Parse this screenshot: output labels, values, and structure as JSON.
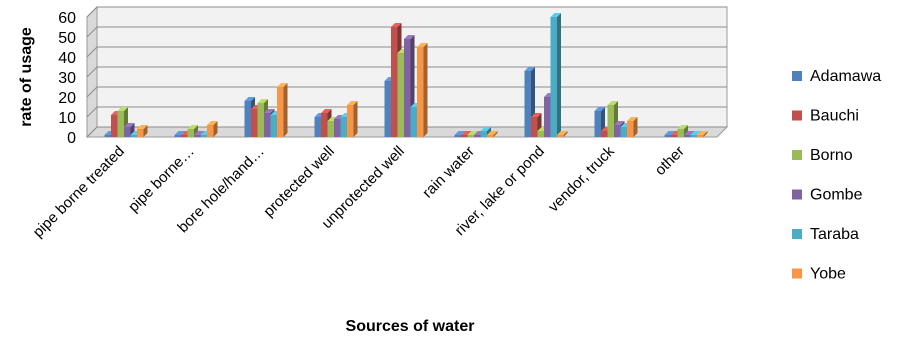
{
  "chart_data": {
    "type": "bar",
    "xlabel": "Sources of water",
    "ylabel": "rate of usage",
    "ylim": [
      0,
      60
    ],
    "yticks": [
      "0",
      "10",
      "20",
      "30",
      "40",
      "50",
      "60"
    ],
    "grid": true,
    "legend_position": "right",
    "categories": [
      "pipe borne treated",
      "pipe borne…",
      "bore hole/hand…",
      "protected well",
      "unprotected well",
      "rain water",
      "river, lake or pond",
      "vendor, truck",
      "other"
    ],
    "series": [
      {
        "name": "Adamawa",
        "color": "#4f81bd",
        "values": [
          1,
          1,
          18,
          10,
          28,
          1,
          33,
          13,
          1
        ]
      },
      {
        "name": "Bauchi",
        "color": "#c0504d",
        "values": [
          11,
          1,
          14,
          12,
          55,
          1,
          10,
          3,
          1
        ]
      },
      {
        "name": "Borno",
        "color": "#9bbb59",
        "values": [
          13,
          4,
          17,
          8,
          42,
          1,
          3,
          16,
          4
        ]
      },
      {
        "name": "Gombe",
        "color": "#8064a2",
        "values": [
          5,
          1,
          12,
          9,
          49,
          1,
          20,
          6,
          1
        ]
      },
      {
        "name": "Taraba",
        "color": "#4bacc6",
        "values": [
          1,
          1,
          11,
          10,
          15,
          3,
          60,
          5,
          1
        ]
      },
      {
        "name": "Yobe",
        "color": "#f79646",
        "values": [
          4,
          6,
          25,
          16,
          45,
          1,
          1,
          8,
          1
        ]
      }
    ]
  }
}
